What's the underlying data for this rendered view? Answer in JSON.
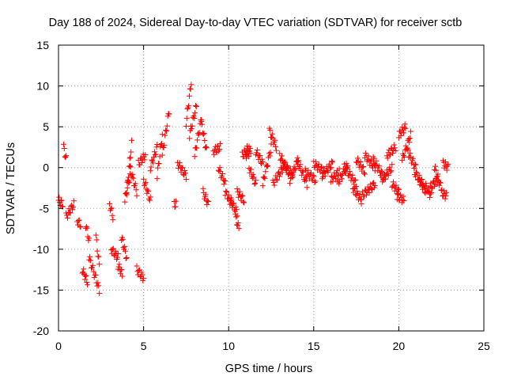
{
  "chart_data": {
    "type": "scatter",
    "title": "Day 188 of 2024, Sidereal Day-to-day VTEC variation (SDTVAR) for receiver sctb",
    "xlabel": "GPS time / hours",
    "ylabel": "SDTVAR / TECUs",
    "xlim": [
      0,
      25
    ],
    "ylim": [
      -20,
      15
    ],
    "x_ticks": [
      "0",
      "5",
      "10",
      "15",
      "20",
      "25"
    ],
    "y_ticks": [
      "15",
      "10",
      "5",
      "0",
      "-5",
      "-10",
      "-15",
      "-20"
    ],
    "grid": true,
    "marker": "plus",
    "series_color": "#ff0000",
    "series": [
      {
        "name": "SDTVAR",
        "segments": [
          {
            "x": [
              0.0,
              0.25
            ],
            "y": [
              -4.0,
              -4.5
            ]
          },
          {
            "x": [
              0.3,
              0.45
            ],
            "y": [
              2.5,
              1.0
            ]
          },
          {
            "x": [
              0.45,
              0.9
            ],
            "y": [
              -6.0,
              -4.5
            ]
          },
          {
            "x": [
              1.1,
              1.3
            ],
            "y": [
              -6.5,
              -7.0
            ]
          },
          {
            "x": [
              1.4,
              1.7
            ],
            "y": [
              -12.5,
              -14.0
            ]
          },
          {
            "x": [
              1.6,
              1.8
            ],
            "y": [
              -7.0,
              -9.0
            ]
          },
          {
            "x": [
              1.8,
              2.4
            ],
            "y": [
              -11.0,
              -15.0
            ]
          },
          {
            "x": [
              2.2,
              2.4
            ],
            "y": [
              -8.5,
              -12.0
            ]
          },
          {
            "x": [
              3.0,
              3.2
            ],
            "y": [
              -4.5,
              -6.0
            ]
          },
          {
            "x": [
              3.1,
              3.5
            ],
            "y": [
              -10.0,
              -11.0
            ]
          },
          {
            "x": [
              3.5,
              3.75
            ],
            "y": [
              -12.0,
              -13.0
            ]
          },
          {
            "x": [
              3.7,
              4.0
            ],
            "y": [
              -8.5,
              -11.0
            ]
          },
          {
            "x": [
              3.9,
              4.2
            ],
            "y": [
              -4.0,
              -1.0
            ]
          },
          {
            "x": [
              4.0,
              4.3
            ],
            "y": [
              -3.0,
              3.0
            ]
          },
          {
            "x": [
              4.2,
              4.6
            ],
            "y": [
              0.0,
              -3.0
            ]
          },
          {
            "x": [
              4.6,
              5.0
            ],
            "y": [
              -12.5,
              -13.5
            ]
          },
          {
            "x": [
              4.7,
              5.1
            ],
            "y": [
              0.5,
              1.5
            ]
          },
          {
            "x": [
              5.0,
              5.4
            ],
            "y": [
              -1.5,
              -4.0
            ]
          },
          {
            "x": [
              5.4,
              5.8
            ],
            "y": [
              0.0,
              2.5
            ]
          },
          {
            "x": [
              5.8,
              6.1
            ],
            "y": [
              -1.0,
              4.0
            ]
          },
          {
            "x": [
              6.1,
              6.5
            ],
            "y": [
              1.5,
              7.0
            ]
          },
          {
            "x": [
              6.8,
              6.9
            ],
            "y": [
              -4.5,
              -4.5
            ]
          },
          {
            "x": [
              7.0,
              7.5
            ],
            "y": [
              0.5,
              -1.0
            ]
          },
          {
            "x": [
              7.5,
              7.8
            ],
            "y": [
              5.5,
              10.5
            ]
          },
          {
            "x": [
              7.7,
              8.1
            ],
            "y": [
              4.0,
              7.5
            ]
          },
          {
            "x": [
              8.0,
              8.4
            ],
            "y": [
              1.5,
              6.0
            ]
          },
          {
            "x": [
              8.4,
              8.7
            ],
            "y": [
              5.5,
              2.0
            ]
          },
          {
            "x": [
              8.5,
              8.8
            ],
            "y": [
              -3.0,
              -4.5
            ]
          },
          {
            "x": [
              9.1,
              9.5
            ],
            "y": [
              2.0,
              2.5
            ]
          },
          {
            "x": [
              9.4,
              9.8
            ],
            "y": [
              0.0,
              -2.0
            ]
          },
          {
            "x": [
              9.8,
              10.2
            ],
            "y": [
              -3.0,
              -4.5
            ]
          },
          {
            "x": [
              10.1,
              10.5
            ],
            "y": [
              -4.0,
              -5.5
            ]
          },
          {
            "x": [
              10.4,
              10.6
            ],
            "y": [
              -6.0,
              -7.5
            ]
          },
          {
            "x": [
              10.5,
              10.9
            ],
            "y": [
              -3.0,
              -4.0
            ]
          },
          {
            "x": [
              10.8,
              11.2
            ],
            "y": [
              1.5,
              2.5
            ]
          },
          {
            "x": [
              11.0,
              11.3
            ],
            "y": [
              1.5,
              2.0
            ]
          },
          {
            "x": [
              11.2,
              11.6
            ],
            "y": [
              0.0,
              -2.0
            ]
          },
          {
            "x": [
              11.6,
              12.0
            ],
            "y": [
              2.0,
              0.5
            ]
          },
          {
            "x": [
              12.0,
              12.5
            ],
            "y": [
              -2.0,
              2.5
            ]
          },
          {
            "x": [
              12.4,
              12.8
            ],
            "y": [
              4.5,
              2.5
            ]
          },
          {
            "x": [
              12.6,
              13.2
            ],
            "y": [
              -2.0,
              0.0
            ]
          },
          {
            "x": [
              13.0,
              13.5
            ],
            "y": [
              1.5,
              -0.5
            ]
          },
          {
            "x": [
              13.2,
              13.8
            ],
            "y": [
              0.5,
              -1.0
            ]
          },
          {
            "x": [
              13.6,
              14.1
            ],
            "y": [
              -1.5,
              1.0
            ]
          },
          {
            "x": [
              14.0,
              14.6
            ],
            "y": [
              1.0,
              -2.0
            ]
          },
          {
            "x": [
              14.5,
              15.1
            ],
            "y": [
              -0.5,
              -1.5
            ]
          },
          {
            "x": [
              15.0,
              15.6
            ],
            "y": [
              0.5,
              -0.5
            ]
          },
          {
            "x": [
              15.5,
              16.1
            ],
            "y": [
              -1.0,
              0.5
            ]
          },
          {
            "x": [
              16.0,
              16.5
            ],
            "y": [
              -1.5,
              -0.5
            ]
          },
          {
            "x": [
              16.4,
              17.0
            ],
            "y": [
              -2.0,
              0.5
            ]
          },
          {
            "x": [
              16.8,
              17.5
            ],
            "y": [
              0.0,
              -2.0
            ]
          },
          {
            "x": [
              17.3,
              17.8
            ],
            "y": [
              -2.5,
              -4.0
            ]
          },
          {
            "x": [
              17.8,
              18.6
            ],
            "y": [
              -3.5,
              -2.0
            ]
          },
          {
            "x": [
              17.5,
              18.0
            ],
            "y": [
              1.0,
              -0.5
            ]
          },
          {
            "x": [
              18.0,
              18.6
            ],
            "y": [
              1.5,
              0.0
            ]
          },
          {
            "x": [
              18.5,
              19.2
            ],
            "y": [
              1.0,
              -1.5
            ]
          },
          {
            "x": [
              19.0,
              19.6
            ],
            "y": [
              -1.5,
              0.0
            ]
          },
          {
            "x": [
              19.3,
              19.8
            ],
            "y": [
              1.5,
              2.5
            ]
          },
          {
            "x": [
              19.6,
              20.0
            ],
            "y": [
              -2.0,
              -3.0
            ]
          },
          {
            "x": [
              19.9,
              20.3
            ],
            "y": [
              -3.5,
              -4.0
            ]
          },
          {
            "x": [
              20.0,
              20.4
            ],
            "y": [
              4.0,
              5.0
            ]
          },
          {
            "x": [
              20.2,
              20.7
            ],
            "y": [
              1.0,
              4.0
            ]
          },
          {
            "x": [
              20.5,
              21.0
            ],
            "y": [
              2.0,
              0.0
            ]
          },
          {
            "x": [
              20.9,
              21.4
            ],
            "y": [
              -0.5,
              -2.0
            ]
          },
          {
            "x": [
              21.2,
              21.6
            ],
            "y": [
              -1.5,
              -3.0
            ]
          },
          {
            "x": [
              21.5,
              21.9
            ],
            "y": [
              -2.0,
              -3.5
            ]
          },
          {
            "x": [
              21.8,
              22.3
            ],
            "y": [
              -2.5,
              -1.5
            ]
          },
          {
            "x": [
              22.1,
              22.5
            ],
            "y": [
              0.0,
              -2.5
            ]
          },
          {
            "x": [
              22.5,
              22.8
            ],
            "y": [
              -3.0,
              -3.5
            ]
          },
          {
            "x": [
              22.6,
              22.9
            ],
            "y": [
              0.5,
              0.0
            ]
          }
        ]
      }
    ]
  }
}
